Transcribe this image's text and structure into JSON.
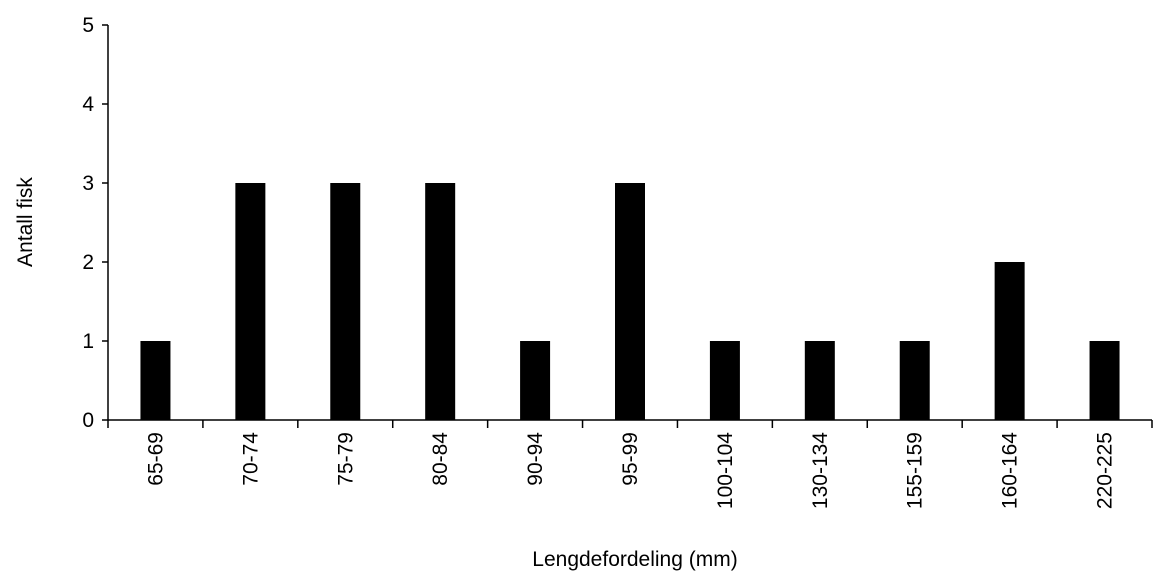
{
  "chart_data": {
    "type": "bar",
    "x_label": "Lengdefordeling (mm)",
    "y_label": "Antall fisk",
    "categories": [
      "65-69",
      "70-74",
      "75-79",
      "80-84",
      "90-94",
      "95-99",
      "100-104",
      "130-134",
      "155-159",
      "160-164",
      "220-225"
    ],
    "values": [
      1,
      3,
      3,
      3,
      1,
      3,
      1,
      1,
      1,
      2,
      1
    ],
    "color": "#000000",
    "ylim": [
      0,
      5
    ],
    "yticks": [
      0,
      1,
      2,
      3,
      4,
      5
    ],
    "grid": false
  }
}
